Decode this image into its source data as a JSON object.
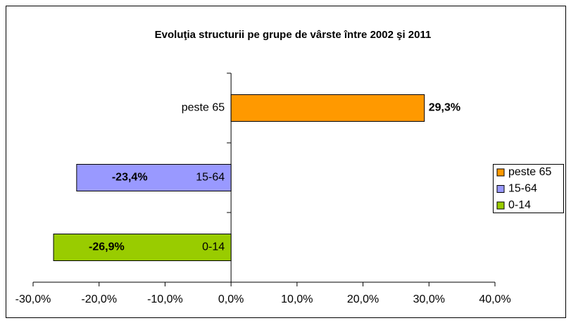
{
  "chart_data": {
    "type": "barh",
    "title": "Evoluţia structurii pe grupe de vârste între 2002 şi 2011",
    "categories": [
      "peste 65",
      "15-64",
      "0-14"
    ],
    "values": [
      29.3,
      -23.4,
      -26.9
    ],
    "value_labels": [
      "29,3%",
      "-23,4%",
      "-26,9%"
    ],
    "colors": [
      "#ff9900",
      "#9999ff",
      "#99cc00"
    ],
    "xlim": [
      -30,
      40
    ],
    "xticks": [
      {
        "value": -30,
        "label": "-30,0%"
      },
      {
        "value": -20,
        "label": "-20,0%"
      },
      {
        "value": -10,
        "label": "-10,0%"
      },
      {
        "value": 0,
        "label": "0,0%"
      },
      {
        "value": 10,
        "label": "10,0%"
      },
      {
        "value": 20,
        "label": "20,0%"
      },
      {
        "value": 30,
        "label": "30,0%"
      },
      {
        "value": 40,
        "label": "40,0%"
      }
    ],
    "legend": "right"
  }
}
